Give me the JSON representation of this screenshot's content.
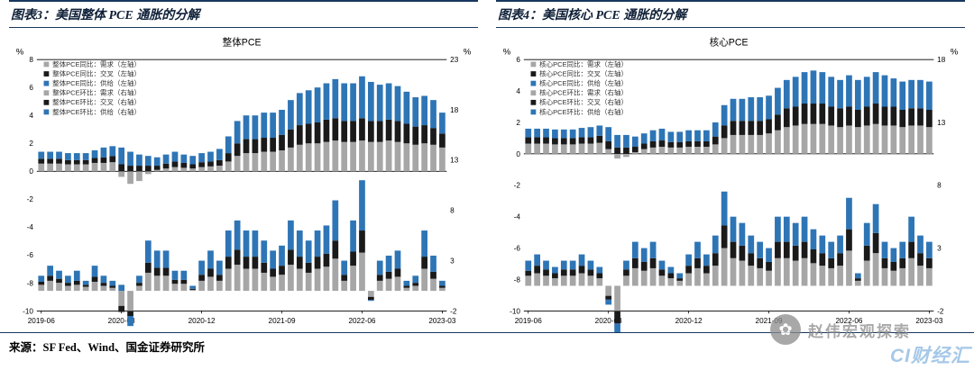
{
  "page": {
    "background": "#ffffff"
  },
  "source": {
    "label": "来源：SF Fed、Wind、国金证券研究所"
  },
  "watermark": {
    "text": "赵伟宏观探索",
    "icon": "✿",
    "blue_logo": "CI财经汇"
  },
  "colors": {
    "demand": "#a6a6a6",
    "cross": "#1a1a1a",
    "supply": "#2e75b6",
    "rule": "#17375e",
    "axis": "#000000"
  },
  "chart_data": [
    {
      "type": "bar",
      "header": "图表3：美国整体 PCE 通胀的分解",
      "title": "整体PCE",
      "left_axis": {
        "label": "%",
        "min": -10,
        "max": 8,
        "ticks": [
          8,
          6,
          4,
          2,
          0,
          -2,
          -4,
          -6,
          -8,
          -10
        ]
      },
      "right_axis": {
        "label": "%",
        "min": -2,
        "max": 23,
        "ticks": [
          23,
          18,
          13,
          8,
          3,
          -2
        ]
      },
      "categories": [
        "2019-06",
        "2019-07",
        "2019-08",
        "2019-09",
        "2019-10",
        "2019-11",
        "2019-12",
        "2020-01",
        "2020-02",
        "2020-03",
        "2020-04",
        "2020-05",
        "2020-06",
        "2020-07",
        "2020-08",
        "2020-09",
        "2020-10",
        "2020-11",
        "2020-12",
        "2021-01",
        "2021-02",
        "2021-03",
        "2021-04",
        "2021-05",
        "2021-06",
        "2021-07",
        "2021-08",
        "2021-09",
        "2021-10",
        "2021-11",
        "2021-12",
        "2022-01",
        "2022-02",
        "2022-03",
        "2022-04",
        "2022-05",
        "2022-06",
        "2022-07",
        "2022-08",
        "2022-09",
        "2022-10",
        "2022-11",
        "2022-12",
        "2023-01",
        "2023-02",
        "2023-03"
      ],
      "x_tick_indices": [
        0,
        9,
        18,
        27,
        36,
        45
      ],
      "x_tick_labels": [
        "2019-06",
        "2020-03",
        "2020-12",
        "2021-09",
        "2022-06",
        "2023-03"
      ],
      "legend": [
        {
          "label": "整体PCE同比：需求（左轴）",
          "color_key": "demand"
        },
        {
          "label": "整体PCE同比：交叉（左轴）",
          "color_key": "cross"
        },
        {
          "label": "整体PCE同比：供给（左轴）",
          "color_key": "supply"
        },
        {
          "label": "整体PCE环比：需求（右轴）",
          "color_key": "demand"
        },
        {
          "label": "整体PCE环比：交叉（右轴）",
          "color_key": "cross"
        },
        {
          "label": "整体PCE环比：供给（右轴）",
          "color_key": "supply"
        }
      ],
      "series": [
        {
          "name": "整体PCE同比：需求",
          "axis": "left",
          "color": "demand",
          "values": [
            0.55,
            0.55,
            0.55,
            0.5,
            0.5,
            0.5,
            0.6,
            0.6,
            0.65,
            -0.4,
            -0.9,
            -0.7,
            -0.2,
            0.1,
            0.2,
            0.3,
            0.25,
            0.2,
            0.3,
            0.35,
            0.4,
            0.7,
            1.1,
            1.3,
            1.3,
            1.4,
            1.4,
            1.5,
            1.7,
            1.9,
            2.0,
            2.0,
            2.1,
            2.2,
            2.1,
            2.1,
            2.2,
            2.1,
            2.1,
            2.2,
            2.1,
            2.0,
            1.9,
            2.0,
            1.9,
            1.7
          ]
        },
        {
          "name": "整体PCE同比：交叉",
          "axis": "left",
          "color": "cross",
          "values": [
            0.35,
            0.35,
            0.35,
            0.3,
            0.3,
            0.3,
            0.35,
            0.4,
            0.45,
            0.5,
            0.4,
            0.4,
            0.4,
            0.3,
            0.35,
            0.4,
            0.35,
            0.3,
            0.35,
            0.35,
            0.4,
            0.6,
            0.9,
            1.0,
            1.0,
            1.0,
            1.0,
            1.1,
            1.3,
            1.4,
            1.4,
            1.5,
            1.6,
            1.6,
            1.5,
            1.5,
            1.6,
            1.5,
            1.5,
            1.5,
            1.5,
            1.4,
            1.3,
            1.3,
            1.2,
            1.0
          ]
        },
        {
          "name": "整体PCE同比：供给",
          "axis": "left",
          "color": "supply",
          "values": [
            0.5,
            0.5,
            0.5,
            0.5,
            0.5,
            0.5,
            0.55,
            0.7,
            0.7,
            1.2,
            1.0,
            0.8,
            0.7,
            0.6,
            0.65,
            0.7,
            0.6,
            0.6,
            0.65,
            0.7,
            0.8,
            1.2,
            1.6,
            1.7,
            1.7,
            1.8,
            1.8,
            1.8,
            2.1,
            2.3,
            2.4,
            2.5,
            2.6,
            2.8,
            2.7,
            2.7,
            3.0,
            2.8,
            2.6,
            2.6,
            2.5,
            2.3,
            2.1,
            2.1,
            2.0,
            1.5
          ]
        },
        {
          "name": "整体PCE环比：需求",
          "axis": "right",
          "color": "demand",
          "values": [
            0.6,
            1.0,
            0.8,
            0.5,
            0.6,
            0.4,
            0.9,
            0.5,
            0.3,
            -1.5,
            -2.0,
            0.5,
            1.8,
            1.5,
            1.5,
            0.7,
            0.7,
            0.1,
            1.0,
            1.4,
            1.0,
            2.2,
            2.6,
            2.2,
            2.2,
            1.8,
            1.4,
            1.6,
            2.6,
            2.2,
            1.8,
            2.2,
            2.4,
            3.2,
            1.0,
            2.5,
            3.8,
            -0.6,
            1.0,
            1.2,
            1.4,
            0.3,
            0.5,
            2.2,
            1.2,
            0.3
          ]
        },
        {
          "name": "整体PCE环比：交叉",
          "axis": "right",
          "color": "cross",
          "values": [
            0.3,
            0.5,
            0.4,
            0.3,
            0.4,
            0.2,
            0.5,
            0.3,
            0.2,
            -0.6,
            -0.5,
            0.3,
            1.0,
            0.8,
            0.8,
            0.4,
            0.4,
            0.1,
            0.6,
            0.8,
            0.6,
            1.2,
            1.5,
            1.2,
            1.2,
            1.0,
            0.8,
            0.9,
            1.5,
            1.2,
            1.0,
            1.2,
            1.3,
            1.8,
            0.6,
            1.4,
            2.2,
            -0.3,
            0.6,
            0.7,
            0.8,
            0.2,
            0.3,
            1.2,
            0.7,
            0.2
          ]
        },
        {
          "name": "整体PCE环比：供给",
          "axis": "right",
          "color": "supply",
          "values": [
            0.6,
            1.0,
            0.8,
            0.7,
            1.0,
            0.4,
            1.1,
            0.7,
            0.5,
            0.6,
            -1.0,
            0.7,
            2.2,
            1.7,
            1.7,
            0.9,
            0.9,
            0.3,
            1.4,
            1.8,
            1.4,
            2.6,
            2.9,
            2.6,
            2.6,
            2.2,
            1.8,
            2.0,
            2.9,
            2.6,
            2.2,
            2.6,
            2.8,
            4.0,
            1.4,
            3.1,
            5.0,
            -0.1,
            1.4,
            1.6,
            1.8,
            0.5,
            0.7,
            2.6,
            1.6,
            0.5
          ]
        }
      ]
    },
    {
      "type": "bar",
      "header": "图表4：美国核心 PCE 通胀的分解",
      "title": "核心PCE",
      "left_axis": {
        "label": "%",
        "min": -10,
        "max": 6,
        "ticks": [
          6,
          4,
          2,
          0,
          -2,
          -4,
          -6,
          -8,
          -10
        ]
      },
      "right_axis": {
        "label": "%",
        "min": -2,
        "max": 18,
        "ticks": [
          18,
          13,
          8,
          3,
          -2
        ]
      },
      "categories": [
        "2019-06",
        "2019-07",
        "2019-08",
        "2019-09",
        "2019-10",
        "2019-11",
        "2019-12",
        "2020-01",
        "2020-02",
        "2020-03",
        "2020-04",
        "2020-05",
        "2020-06",
        "2020-07",
        "2020-08",
        "2020-09",
        "2020-10",
        "2020-11",
        "2020-12",
        "2021-01",
        "2021-02",
        "2021-03",
        "2021-04",
        "2021-05",
        "2021-06",
        "2021-07",
        "2021-08",
        "2021-09",
        "2021-10",
        "2021-11",
        "2021-12",
        "2022-01",
        "2022-02",
        "2022-03",
        "2022-04",
        "2022-05",
        "2022-06",
        "2022-07",
        "2022-08",
        "2022-09",
        "2022-10",
        "2022-11",
        "2022-12",
        "2023-01",
        "2023-02",
        "2023-03"
      ],
      "x_tick_indices": [
        0,
        9,
        18,
        27,
        36,
        45
      ],
      "x_tick_labels": [
        "2019-06",
        "2020-03",
        "2020-12",
        "2021-09",
        "2022-06",
        "2023-03"
      ],
      "legend": [
        {
          "label": "核心PCE同比：需求（左轴）",
          "color_key": "demand"
        },
        {
          "label": "核心PCE同比：交叉（左轴）",
          "color_key": "cross"
        },
        {
          "label": "核心PCE同比：供给（左轴）",
          "color_key": "supply"
        },
        {
          "label": "核心PCE环比：需求（右轴）",
          "color_key": "demand"
        },
        {
          "label": "核心PCE环比：交叉（右轴）",
          "color_key": "cross"
        },
        {
          "label": "核心PCE环比：供给（右轴）",
          "color_key": "supply"
        }
      ],
      "series": [
        {
          "name": "核心PCE同比：需求",
          "axis": "left",
          "color": "demand",
          "values": [
            0.65,
            0.65,
            0.65,
            0.6,
            0.6,
            0.6,
            0.65,
            0.65,
            0.7,
            0.3,
            -0.3,
            -0.2,
            0.1,
            0.3,
            0.4,
            0.45,
            0.4,
            0.4,
            0.45,
            0.45,
            0.45,
            0.6,
            1.0,
            1.2,
            1.2,
            1.2,
            1.2,
            1.3,
            1.5,
            1.7,
            1.8,
            1.9,
            1.9,
            1.9,
            1.8,
            1.7,
            1.8,
            1.7,
            1.8,
            1.9,
            1.8,
            1.8,
            1.7,
            1.8,
            1.8,
            1.7
          ]
        },
        {
          "name": "核心PCE同比：交叉",
          "axis": "left",
          "color": "cross",
          "values": [
            0.4,
            0.4,
            0.4,
            0.4,
            0.4,
            0.4,
            0.4,
            0.4,
            0.45,
            0.5,
            0.4,
            0.4,
            0.35,
            0.35,
            0.4,
            0.4,
            0.35,
            0.35,
            0.35,
            0.35,
            0.35,
            0.5,
            0.8,
            0.9,
            0.9,
            0.9,
            0.9,
            0.9,
            1.0,
            1.2,
            1.2,
            1.3,
            1.3,
            1.3,
            1.2,
            1.2,
            1.2,
            1.1,
            1.2,
            1.3,
            1.2,
            1.2,
            1.1,
            1.1,
            1.1,
            1.1
          ]
        },
        {
          "name": "核心PCE同比：供给",
          "axis": "left",
          "color": "supply",
          "values": [
            0.55,
            0.55,
            0.55,
            0.55,
            0.55,
            0.55,
            0.6,
            0.65,
            0.65,
            0.9,
            0.8,
            0.8,
            0.65,
            0.65,
            0.7,
            0.75,
            0.65,
            0.65,
            0.7,
            0.7,
            0.7,
            0.9,
            1.3,
            1.4,
            1.4,
            1.5,
            1.5,
            1.5,
            1.7,
            1.8,
            1.9,
            2.0,
            2.1,
            2.0,
            1.9,
            1.8,
            2.0,
            1.9,
            1.9,
            2.0,
            2.0,
            1.8,
            1.8,
            1.8,
            1.8,
            1.8
          ]
        },
        {
          "name": "核心PCE环比：需求",
          "axis": "right",
          "color": "demand",
          "values": [
            0.8,
            1.0,
            0.8,
            0.6,
            0.8,
            0.8,
            1.0,
            0.8,
            0.6,
            -0.8,
            -2.0,
            0.8,
            1.4,
            1.2,
            1.4,
            0.8,
            0.6,
            0.4,
            1.0,
            1.4,
            1.0,
            1.6,
            3.0,
            2.2,
            2.0,
            1.6,
            1.4,
            1.2,
            2.2,
            2.2,
            2.0,
            2.2,
            1.8,
            1.6,
            1.4,
            1.6,
            2.8,
            0.4,
            2.0,
            2.6,
            1.4,
            1.2,
            1.4,
            2.2,
            1.6,
            1.4
          ]
        },
        {
          "name": "核心PCE环比：交叉",
          "axis": "right",
          "color": "cross",
          "values": [
            0.4,
            0.6,
            0.5,
            0.4,
            0.5,
            0.5,
            0.6,
            0.5,
            0.4,
            -0.3,
            -1.0,
            0.5,
            0.8,
            0.7,
            0.8,
            0.5,
            0.4,
            0.2,
            0.6,
            0.8,
            0.6,
            1.0,
            1.8,
            1.3,
            1.2,
            1.0,
            0.8,
            0.7,
            1.3,
            1.3,
            1.2,
            1.3,
            1.1,
            1.0,
            0.8,
            1.0,
            1.7,
            0.2,
            1.2,
            1.6,
            0.8,
            0.7,
            0.8,
            1.3,
            1.0,
            0.8
          ]
        },
        {
          "name": "核心PCE环比：供给",
          "axis": "right",
          "color": "supply",
          "values": [
            0.8,
            0.9,
            0.7,
            0.5,
            0.7,
            0.7,
            0.9,
            0.7,
            0.5,
            -0.4,
            -2.0,
            0.7,
            1.3,
            1.1,
            1.3,
            0.7,
            0.5,
            0.4,
            0.9,
            1.3,
            0.9,
            1.4,
            2.7,
            2.0,
            1.8,
            1.4,
            1.3,
            1.1,
            2.0,
            2.0,
            1.8,
            2.0,
            1.6,
            1.4,
            1.3,
            1.4,
            2.5,
            0.4,
            1.8,
            2.3,
            1.3,
            1.1,
            1.3,
            2.0,
            1.4,
            1.3
          ]
        }
      ]
    }
  ]
}
